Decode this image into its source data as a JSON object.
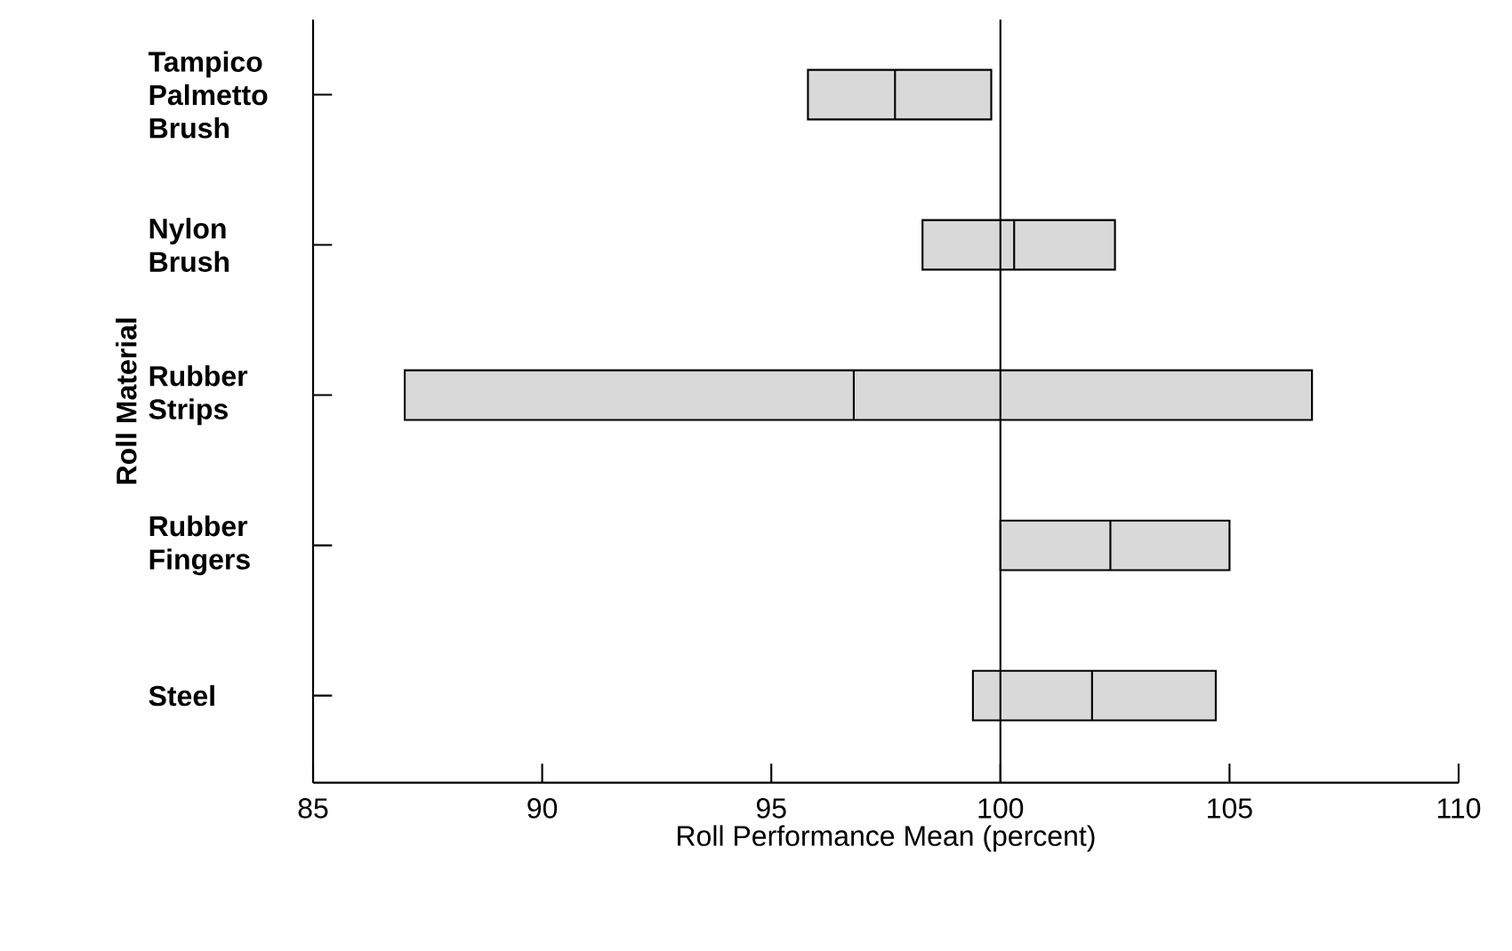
{
  "chart_data": {
    "type": "box",
    "orientation": "horizontal",
    "categories": [
      "Tampico Palmetto Brush",
      "Nylon Brush",
      "Rubber Strips",
      "Rubber Fingers",
      "Steel"
    ],
    "series": [
      {
        "color": "#d9d9d9",
        "boxes": [
          {
            "low": 95.8,
            "q1": 95.8,
            "median": 97.7,
            "q3": 99.8,
            "high": 99.8
          },
          {
            "low": 98.3,
            "q1": 98.3,
            "median": 100.3,
            "q3": 102.5,
            "high": 102.5
          },
          {
            "low": 87.0,
            "q1": 87.0,
            "median": 96.8,
            "q3": 106.8,
            "high": 106.8
          },
          {
            "low": 100.0,
            "q1": 100.0,
            "median": 102.4,
            "q3": 105.0,
            "high": 105.0
          },
          {
            "low": 99.4,
            "q1": 99.4,
            "median": 102.0,
            "q3": 104.7,
            "high": 104.7
          }
        ]
      }
    ],
    "xlim": [
      85,
      110
    ],
    "xticks": [
      85,
      90,
      95,
      100,
      105,
      110
    ],
    "xlabel": "Roll Performance Mean (percent)",
    "ylabel": "Roll Material",
    "ref_lines": [
      {
        "axis": "x",
        "value": 100
      }
    ],
    "grid": false
  }
}
